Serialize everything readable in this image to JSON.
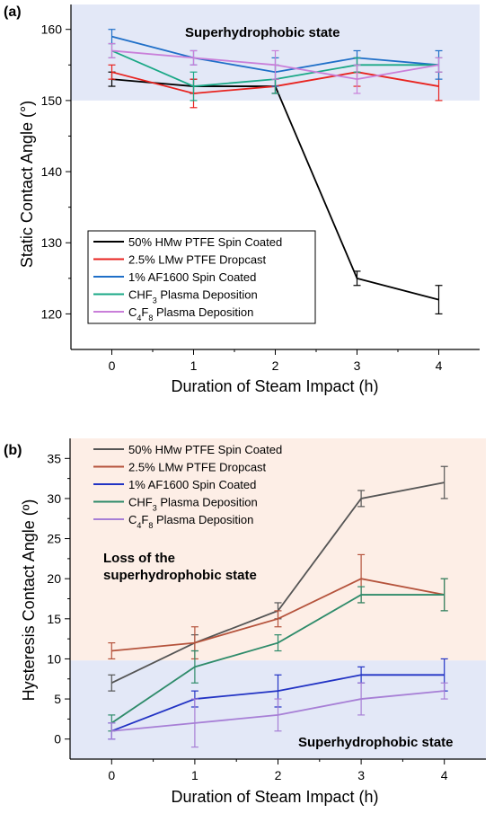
{
  "chart_data": [
    {
      "panel_label": "(a)",
      "type": "line",
      "xlabel": "Duration of Steam Impact (h)",
      "ylabel": "Static Contact Angle (°)",
      "x": [
        0,
        1,
        2,
        3,
        4
      ],
      "xlim": [
        -0.5,
        4.5
      ],
      "ylim": [
        115,
        163.5
      ],
      "yticks": [
        120,
        130,
        140,
        150,
        160
      ],
      "grid": false,
      "legend_position": "lower-left",
      "regions": [
        {
          "label": "Superhydrophobic state",
          "y_from": 150,
          "y_to": 163.5,
          "color": "#e3e8f7"
        }
      ],
      "series": [
        {
          "name": "50% HMw PTFE Spin Coated",
          "sub": "",
          "color": "#000000",
          "values": [
            153,
            152,
            152,
            125,
            122
          ],
          "errors": [
            1,
            1,
            1,
            1,
            2
          ]
        },
        {
          "name": "2.5% LMw PTFE Dropcast",
          "sub": "",
          "color": "#e8231f",
          "values": [
            154,
            151,
            152,
            154,
            152
          ],
          "errors": [
            1,
            2,
            1,
            2,
            2
          ]
        },
        {
          "name": "1% AF1600 Spin Coated",
          "sub": "",
          "color": "#1f6fc8",
          "values": [
            159,
            156,
            154,
            156,
            155
          ],
          "errors": [
            1,
            1,
            2,
            1,
            2
          ]
        },
        {
          "name": "CHF",
          "sub": "3",
          "tail": " Plasma Deposition",
          "color": "#1aa886",
          "values": [
            157,
            152,
            153,
            155,
            155
          ],
          "errors": [
            1,
            2,
            2,
            1,
            1
          ]
        },
        {
          "name": "C",
          "sub": "4",
          "mid": "F",
          "sub2": "8",
          "tail": " Plasma Deposition",
          "color": "#c97fd9",
          "values": [
            157,
            156,
            155,
            153,
            155
          ],
          "errors": [
            1,
            1,
            2,
            2,
            1
          ]
        }
      ]
    },
    {
      "panel_label": "(b)",
      "type": "line",
      "xlabel": "Duration of Steam Impact (h)",
      "ylabel": "Hysteresis Contact Angle (º)",
      "x": [
        0,
        1,
        2,
        3,
        4
      ],
      "xlim": [
        -0.5,
        4.5
      ],
      "ylim": [
        -2.5,
        37.5
      ],
      "yticks": [
        0,
        5,
        10,
        15,
        20,
        25,
        30,
        35
      ],
      "grid": false,
      "legend_position": "top-left",
      "regions": [
        {
          "label": "Loss of the superhydrophobic state",
          "y_from": 9.8,
          "y_to": 37.5,
          "color": "#fdeee6"
        },
        {
          "label": "Superhydrophobic state",
          "y_from": -2.5,
          "y_to": 9.8,
          "color": "#e3e8f7"
        }
      ],
      "series": [
        {
          "name": "50% HMw PTFE Spin Coated",
          "sub": "",
          "color": "#555555",
          "values": [
            7,
            12,
            16,
            30,
            32
          ],
          "errors": [
            1,
            1,
            1,
            1,
            2
          ]
        },
        {
          "name": "2.5% LMw PTFE Dropcast",
          "sub": "",
          "color": "#b5533c",
          "values": [
            11,
            12,
            15,
            20,
            18
          ],
          "errors": [
            1,
            2,
            1,
            3,
            2
          ]
        },
        {
          "name": "1% AF1600 Spin Coated",
          "sub": "",
          "color": "#2233c4",
          "values": [
            1,
            5,
            6,
            8,
            8
          ],
          "errors": [
            1,
            1,
            2,
            1,
            2
          ]
        },
        {
          "name": "CHF",
          "sub": "3",
          "tail": " Plasma Deposition",
          "color": "#2e8b6a",
          "values": [
            2,
            9,
            12,
            18,
            18
          ],
          "errors": [
            1,
            2,
            1,
            1,
            2
          ]
        },
        {
          "name": "C",
          "sub": "4",
          "mid": "F",
          "sub2": "8",
          "tail": " Plasma Deposition",
          "color": "#a77fd6",
          "values": [
            1,
            2,
            3,
            5,
            6
          ],
          "errors": [
            1,
            3,
            2,
            2,
            1
          ]
        }
      ]
    }
  ],
  "text": {
    "panel_a_label": "(a)",
    "panel_b_label": "(b)",
    "xlabel": "Duration of Steam Impact (h)",
    "ylabel_a": "Static Contact Angle (°)",
    "ylabel_b": "Hysteresis Contact Angle (º)",
    "region_a_top": "Superhydrophobic state",
    "region_b_loss_line1": "Loss of the",
    "region_b_loss_line2": "superhydrophobic state",
    "region_b_bottom": "Superhydrophobic state"
  }
}
